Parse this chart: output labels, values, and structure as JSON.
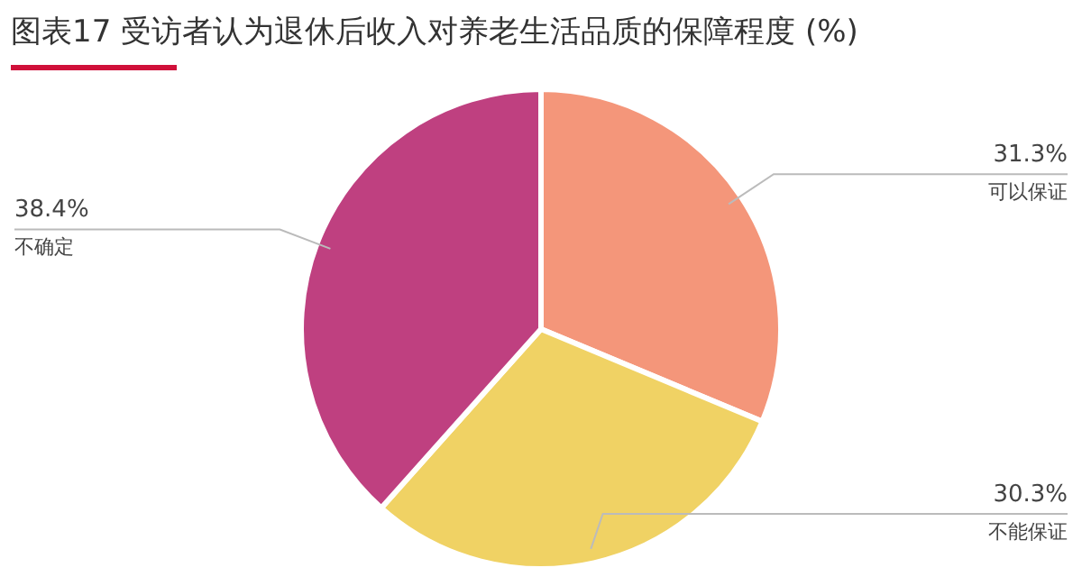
{
  "chart_data": {
    "type": "pie",
    "title": "图表17 受访者认为退休后收入对养老生活品质的保障程度 (%)",
    "categories": [
      "可以保证",
      "不能保证",
      "不确定"
    ],
    "values": [
      31.3,
      30.3,
      38.4
    ],
    "value_labels": [
      "31.3%",
      "30.3%",
      "38.4%"
    ],
    "colors": [
      "#f4967a",
      "#f0d264",
      "#bf4080"
    ],
    "legend": false
  }
}
